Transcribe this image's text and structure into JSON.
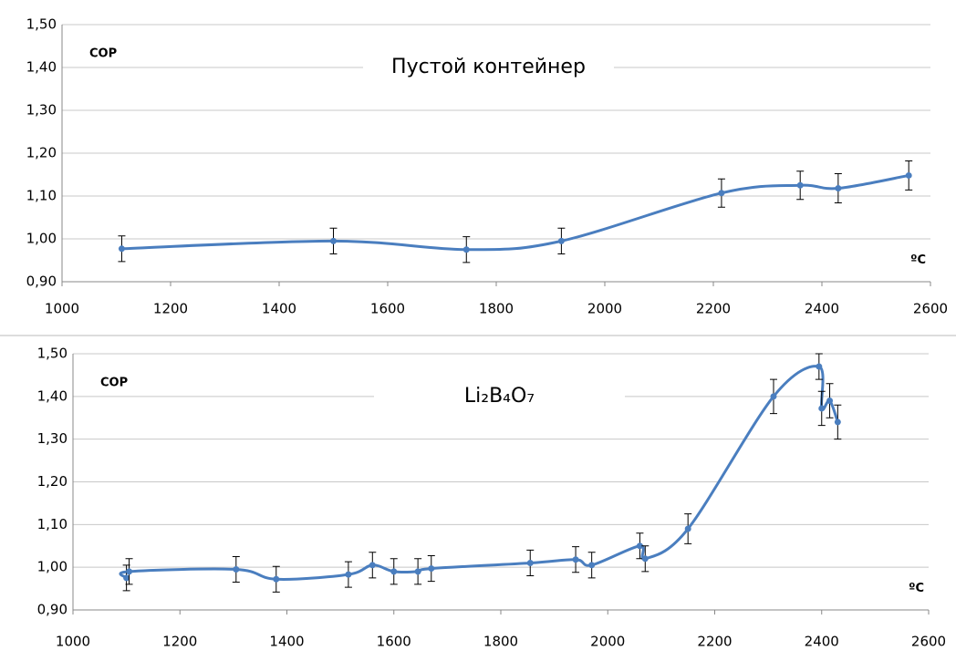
{
  "chart_data": [
    {
      "type": "line",
      "title": "Пустой контейнер",
      "y_label": "COP",
      "x_label": "ºC",
      "color": "#4a7ebf",
      "x": [
        1110,
        1500,
        1745,
        1920,
        2215,
        2360,
        2430,
        2560
      ],
      "values": [
        0.977,
        0.995,
        0.975,
        0.995,
        1.107,
        1.125,
        1.118,
        1.148
      ],
      "errors": [
        0.03,
        0.03,
        0.03,
        0.03,
        0.033,
        0.033,
        0.034,
        0.034
      ],
      "xlim": [
        1000,
        2600
      ],
      "xticks": [
        1000,
        1200,
        1400,
        1600,
        1800,
        2000,
        2200,
        2400,
        2600
      ],
      "ylim": [
        0.9,
        1.5
      ],
      "yticks": [
        {
          "value": 0.9,
          "label": "0,90"
        },
        {
          "value": 1.0,
          "label": "1,00"
        },
        {
          "value": 1.1,
          "label": "1,10"
        },
        {
          "value": 1.2,
          "label": "1,20"
        },
        {
          "value": 1.3,
          "label": "1,30"
        },
        {
          "value": 1.4,
          "label": "1,40"
        },
        {
          "value": 1.5,
          "label": "1,50"
        }
      ],
      "grid": true
    },
    {
      "type": "line",
      "title": "Li₂B₄O₇",
      "y_label": "COP",
      "x_label": "ºC",
      "color": "#4a7ebf",
      "x": [
        1100,
        1105,
        1305,
        1380,
        1515,
        1560,
        1600,
        1645,
        1670,
        1855,
        1940,
        1970,
        2060,
        2070,
        2150,
        2310,
        2395,
        2400,
        2415,
        2430
      ],
      "values": [
        0.975,
        0.99,
        0.995,
        0.972,
        0.983,
        1.005,
        0.99,
        0.99,
        0.997,
        1.01,
        1.018,
        1.005,
        1.05,
        1.02,
        1.09,
        1.4,
        1.47,
        1.372,
        1.39,
        1.34
      ],
      "errors": [
        0.03,
        0.03,
        0.03,
        0.03,
        0.03,
        0.03,
        0.03,
        0.03,
        0.03,
        0.03,
        0.03,
        0.03,
        0.03,
        0.03,
        0.035,
        0.04,
        0.03,
        0.04,
        0.04,
        0.04
      ],
      "xlim": [
        1000,
        2600
      ],
      "xticks": [
        1000,
        1200,
        1400,
        1600,
        1800,
        2000,
        2200,
        2400,
        2600
      ],
      "ylim": [
        0.9,
        1.5
      ],
      "yticks": [
        {
          "value": 0.9,
          "label": "0,90"
        },
        {
          "value": 1.0,
          "label": "1,00"
        },
        {
          "value": 1.1,
          "label": "1,10"
        },
        {
          "value": 1.2,
          "label": "1,20"
        },
        {
          "value": 1.3,
          "label": "1,30"
        },
        {
          "value": 1.4,
          "label": "1,40"
        },
        {
          "value": 1.5,
          "label": "1,50"
        }
      ],
      "grid": true
    }
  ]
}
